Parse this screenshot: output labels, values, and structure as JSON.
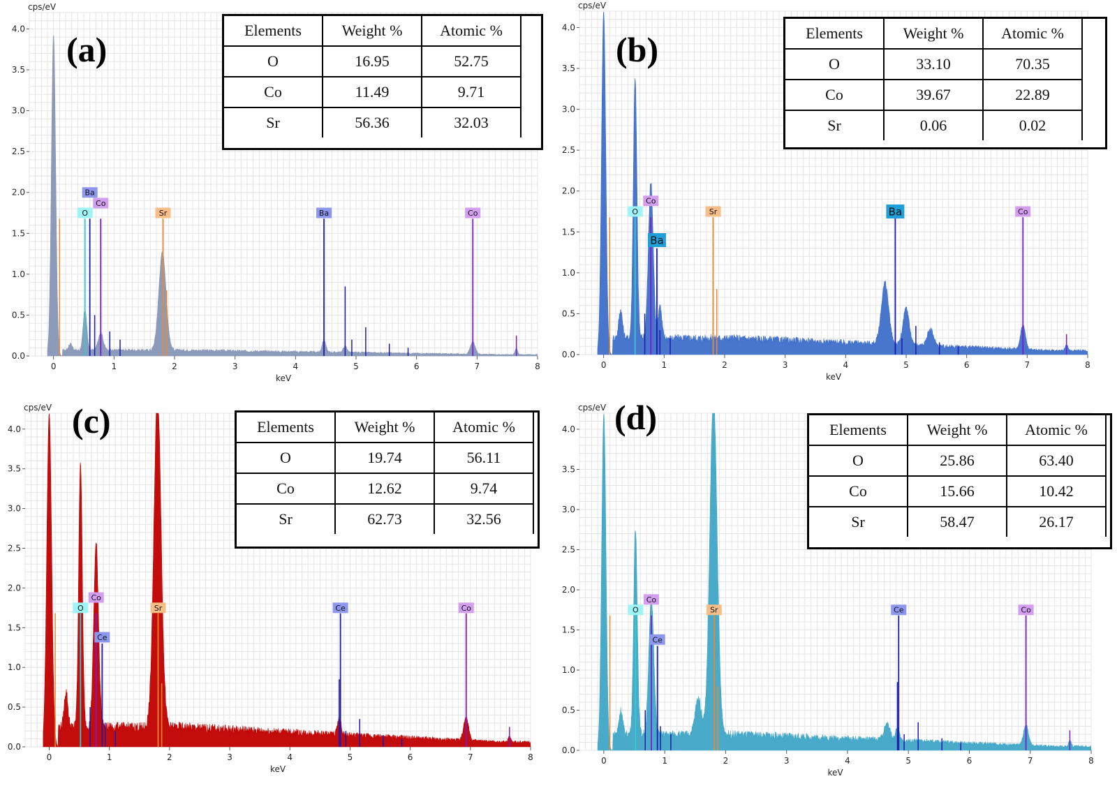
{
  "chart_data": [
    {
      "id": "a",
      "type": "line",
      "panel_label": "(a)",
      "ylabel": "cps/eV",
      "xlabel": "keV",
      "xlim": [
        -0.4,
        8.0
      ],
      "ylim": [
        0,
        4.2
      ],
      "xticks": [
        0,
        1,
        2,
        3,
        4,
        5,
        6,
        7,
        8
      ],
      "yticks": [
        0.0,
        0.5,
        1.0,
        1.5,
        2.0,
        2.5,
        3.0,
        3.5,
        4.0
      ],
      "ytick_labels": [
        "0.0",
        "0.5",
        "1.0",
        "1.5",
        "2.0",
        "2.5",
        "3.0",
        "3.5",
        "4.0"
      ],
      "fill_color": "#8796b6",
      "baseline": 0.07,
      "peaks": [
        [
          0.0,
          3.93,
          0.035
        ],
        [
          0.28,
          0.08,
          0.03
        ],
        [
          0.52,
          0.5,
          0.03
        ],
        [
          0.78,
          0.22,
          0.04
        ],
        [
          1.8,
          1.2,
          0.06
        ],
        [
          4.47,
          0.15,
          0.03
        ],
        [
          4.82,
          0.08,
          0.03
        ],
        [
          6.93,
          0.15,
          0.04
        ],
        [
          7.65,
          0.08,
          0.02
        ]
      ],
      "markers": [
        {
          "el": "O",
          "x": 0.52,
          "h": 1.68,
          "color": "#33cccc",
          "label_y": 1.75,
          "bg": "#9ff5f5"
        },
        {
          "el": "Ba",
          "x": 0.6,
          "h": 1.68,
          "color": "#1a1ab0",
          "label_y": 2.0,
          "bg": "#8e97ee"
        },
        {
          "el": "Co",
          "x": 0.78,
          "h": 1.68,
          "color": "#7a1ad1",
          "label_y": 1.87,
          "bg": "#d49ef0"
        },
        {
          "el": "Sr",
          "x": 1.81,
          "h": 1.68,
          "color": "#f0872a",
          "label_y": 1.75,
          "bg": "#f8be88"
        },
        {
          "el": "Ba",
          "x": 4.47,
          "h": 1.68,
          "color": "#1a1ab0",
          "label_y": 1.75,
          "bg": "#8e97ee"
        },
        {
          "el": "Co",
          "x": 6.93,
          "h": 1.68,
          "color": "#7a1ad1",
          "label_y": 1.75,
          "bg": "#d49ef0"
        }
      ],
      "table": {
        "headers": [
          "Elements",
          "Weight %",
          "Atomic %"
        ],
        "rows": [
          [
            "O",
            "16.95",
            "52.75"
          ],
          [
            "Co",
            "11.49",
            "9.71"
          ],
          [
            "Sr",
            "56.36",
            "32.03"
          ]
        ]
      }
    },
    {
      "id": "b",
      "type": "line",
      "panel_label": "(b)",
      "ylabel": "cps/eV",
      "xlabel": "keV",
      "xlim": [
        -0.4,
        8.0
      ],
      "ylim": [
        0,
        4.2
      ],
      "xticks": [
        0,
        1,
        2,
        3,
        4,
        5,
        6,
        7,
        8
      ],
      "yticks": [
        0.0,
        0.5,
        1.0,
        1.5,
        2.0,
        2.5,
        3.0,
        3.5,
        4.0
      ],
      "ytick_labels": [
        "0.0",
        "0.5",
        "1.0",
        "1.5",
        "2.0",
        "2.5",
        "3.0",
        "3.5",
        "4.0"
      ],
      "fill_color": "#3e6fc9",
      "baseline": 0.2,
      "peaks": [
        [
          0.0,
          4.2,
          0.035
        ],
        [
          0.28,
          0.35,
          0.03
        ],
        [
          0.52,
          3.2,
          0.03
        ],
        [
          0.78,
          1.9,
          0.04
        ],
        [
          0.93,
          0.4,
          0.03
        ],
        [
          4.65,
          0.75,
          0.06
        ],
        [
          5.0,
          0.45,
          0.05
        ],
        [
          5.4,
          0.2,
          0.05
        ],
        [
          6.93,
          0.3,
          0.04
        ],
        [
          7.65,
          0.08,
          0.02
        ]
      ],
      "markers": [
        {
          "el": "O",
          "x": 0.52,
          "h": 1.68,
          "color": "#33cccc",
          "label_y": 1.75,
          "bg": "#9ff5f5"
        },
        {
          "el": "Co",
          "x": 0.78,
          "h": 1.68,
          "color": "#7a1ad1",
          "label_y": 1.88,
          "bg": "#d49ef0"
        },
        {
          "el": "Ba",
          "x": 0.88,
          "h": 1.3,
          "color": "#1a1ab0",
          "label_y": 1.4,
          "bg": "#1fa0d8"
        },
        {
          "el": "Sr",
          "x": 1.81,
          "h": 1.68,
          "color": "#f0872a",
          "label_y": 1.75,
          "bg": "#f8be88"
        },
        {
          "el": "Ba",
          "x": 4.82,
          "h": 1.68,
          "color": "#1a1ab0",
          "label_y": 1.75,
          "bg": "#1fa0d8"
        },
        {
          "el": "Co",
          "x": 6.93,
          "h": 1.68,
          "color": "#7a1ad1",
          "label_y": 1.75,
          "bg": "#d49ef0"
        }
      ],
      "table": {
        "headers": [
          "Elements",
          "Weight %",
          "Atomic %"
        ],
        "rows": [
          [
            "O",
            "33.10",
            "70.35"
          ],
          [
            "Co",
            "39.67",
            "22.89"
          ],
          [
            "Sr",
            "0.06",
            "0.02"
          ]
        ]
      }
    },
    {
      "id": "c",
      "type": "line",
      "panel_label": "(c)",
      "ylabel": "cps/eV",
      "xlabel": "keV",
      "xlim": [
        -0.4,
        8.0
      ],
      "ylim": [
        0,
        4.2
      ],
      "xticks": [
        0,
        1,
        2,
        3,
        4,
        5,
        6,
        7,
        8
      ],
      "yticks": [
        0.0,
        0.5,
        1.0,
        1.5,
        2.0,
        2.5,
        3.0,
        3.5,
        4.0
      ],
      "ytick_labels": [
        "0.0",
        "0.5",
        "1.0",
        "1.5",
        "2.0",
        "2.5",
        "3.0",
        "3.5",
        "4.0"
      ],
      "fill_color": "#c00000",
      "baseline": 0.25,
      "peaks": [
        [
          0.0,
          4.2,
          0.04
        ],
        [
          0.28,
          0.45,
          0.03
        ],
        [
          0.52,
          3.35,
          0.03
        ],
        [
          0.78,
          2.3,
          0.04
        ],
        [
          1.8,
          4.2,
          0.06
        ],
        [
          4.82,
          0.2,
          0.03
        ],
        [
          6.93,
          0.3,
          0.04
        ],
        [
          7.65,
          0.08,
          0.02
        ]
      ],
      "markers": [
        {
          "el": "O",
          "x": 0.52,
          "h": 1.68,
          "color": "#33cccc",
          "label_y": 1.75,
          "bg": "#9ff5f5"
        },
        {
          "el": "Co",
          "x": 0.78,
          "h": 1.68,
          "color": "#7a1ad1",
          "label_y": 1.88,
          "bg": "#d49ef0"
        },
        {
          "el": "Ce",
          "x": 0.88,
          "h": 1.3,
          "color": "#1a1ab0",
          "label_y": 1.38,
          "bg": "#8e97ee"
        },
        {
          "el": "Sr",
          "x": 1.81,
          "h": 1.68,
          "color": "#f0872a",
          "label_y": 1.75,
          "bg": "#f8be88"
        },
        {
          "el": "Ce",
          "x": 4.84,
          "h": 1.68,
          "color": "#1a1ab0",
          "label_y": 1.75,
          "bg": "#8e97ee"
        },
        {
          "el": "Co",
          "x": 6.93,
          "h": 1.68,
          "color": "#7a1ad1",
          "label_y": 1.75,
          "bg": "#d49ef0"
        }
      ],
      "table": {
        "headers": [
          "Elements",
          "Weight %",
          "Atomic %"
        ],
        "rows": [
          [
            "O",
            "19.74",
            "56.11"
          ],
          [
            "Co",
            "12.62",
            "9.74"
          ],
          [
            "Sr",
            "62.73",
            "32.56"
          ]
        ]
      }
    },
    {
      "id": "d",
      "type": "line",
      "panel_label": "(d)",
      "ylabel": "cps/eV",
      "xlabel": "keV",
      "xlim": [
        -0.4,
        8.0
      ],
      "ylim": [
        0,
        4.2
      ],
      "xticks": [
        0,
        1,
        2,
        3,
        4,
        5,
        6,
        7,
        8
      ],
      "yticks": [
        0.0,
        0.5,
        1.0,
        1.5,
        2.0,
        2.5,
        3.0,
        3.5,
        4.0
      ],
      "ytick_labels": [
        "0.0",
        "0.5",
        "1.0",
        "1.5",
        "2.0",
        "2.5",
        "3.0",
        "3.5",
        "4.0"
      ],
      "fill_color": "#3fa6c6",
      "baseline": 0.2,
      "peaks": [
        [
          0.0,
          4.2,
          0.035
        ],
        [
          0.28,
          0.3,
          0.03
        ],
        [
          0.52,
          2.55,
          0.03
        ],
        [
          0.78,
          1.7,
          0.04
        ],
        [
          1.55,
          0.45,
          0.05
        ],
        [
          1.8,
          4.2,
          0.06
        ],
        [
          4.65,
          0.2,
          0.05
        ],
        [
          4.82,
          0.15,
          0.03
        ],
        [
          6.93,
          0.25,
          0.04
        ],
        [
          7.65,
          0.08,
          0.02
        ]
      ],
      "markers": [
        {
          "el": "O",
          "x": 0.52,
          "h": 1.68,
          "color": "#33cccc",
          "label_y": 1.75,
          "bg": "#9ff5f5"
        },
        {
          "el": "Co",
          "x": 0.78,
          "h": 1.68,
          "color": "#7a1ad1",
          "label_y": 1.88,
          "bg": "#d49ef0"
        },
        {
          "el": "Ce",
          "x": 0.88,
          "h": 1.3,
          "color": "#1a1ab0",
          "label_y": 1.38,
          "bg": "#8e97ee"
        },
        {
          "el": "Sr",
          "x": 1.81,
          "h": 1.68,
          "color": "#f0872a",
          "label_y": 1.75,
          "bg": "#f8be88"
        },
        {
          "el": "Ce",
          "x": 4.84,
          "h": 1.68,
          "color": "#1a1ab0",
          "label_y": 1.75,
          "bg": "#8e97ee"
        },
        {
          "el": "Co",
          "x": 6.93,
          "h": 1.68,
          "color": "#7a1ad1",
          "label_y": 1.75,
          "bg": "#d49ef0"
        }
      ],
      "table": {
        "headers": [
          "Elements",
          "Weight %",
          "Atomic %"
        ],
        "rows": [
          [
            "O",
            "25.86",
            "63.40"
          ],
          [
            "Co",
            "15.66",
            "10.42"
          ],
          [
            "Sr",
            "58.47",
            "26.17"
          ]
        ]
      }
    }
  ]
}
